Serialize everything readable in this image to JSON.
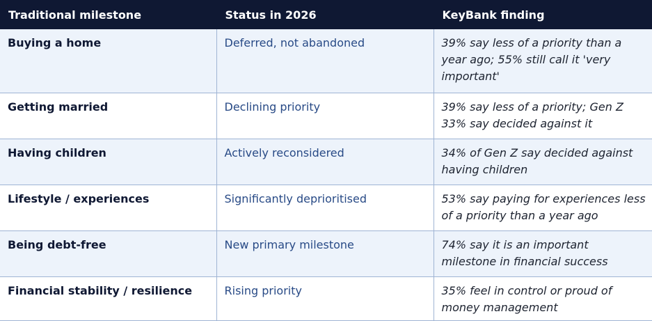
{
  "headers": [
    "Traditional milestone",
    "Status in 2026",
    "KeyBank finding"
  ],
  "rows": [
    {
      "milestone": "Buying a home",
      "status": "Deferred, not abandoned",
      "finding": "39% say less of a priority than a year ago; 55% still call it 'very important'"
    },
    {
      "milestone": "Getting married",
      "status": "Declining priority",
      "finding": "39% say less of a priority; Gen Z 33% say decided against it"
    },
    {
      "milestone": "Having children",
      "status": "Actively reconsidered",
      "finding": "34% of Gen Z say decided against having children"
    },
    {
      "milestone": "Lifestyle / experiences",
      "status": "Significantly deprioritised",
      "finding": "53% say paying for experiences less of a priority than a year ago"
    },
    {
      "milestone": "Being debt-free",
      "status": "New primary milestone",
      "finding": "74% say it is an important milestone in financial success"
    },
    {
      "milestone": "Financial stability / resilience",
      "status": "Rising priority",
      "finding": "35% feel in control or proud of money management"
    }
  ],
  "colors": {
    "header_bg": "#0f1833",
    "row_alt_bg": "#edf3fb",
    "status_text": "#284a86",
    "border": "#9fb4d4"
  }
}
